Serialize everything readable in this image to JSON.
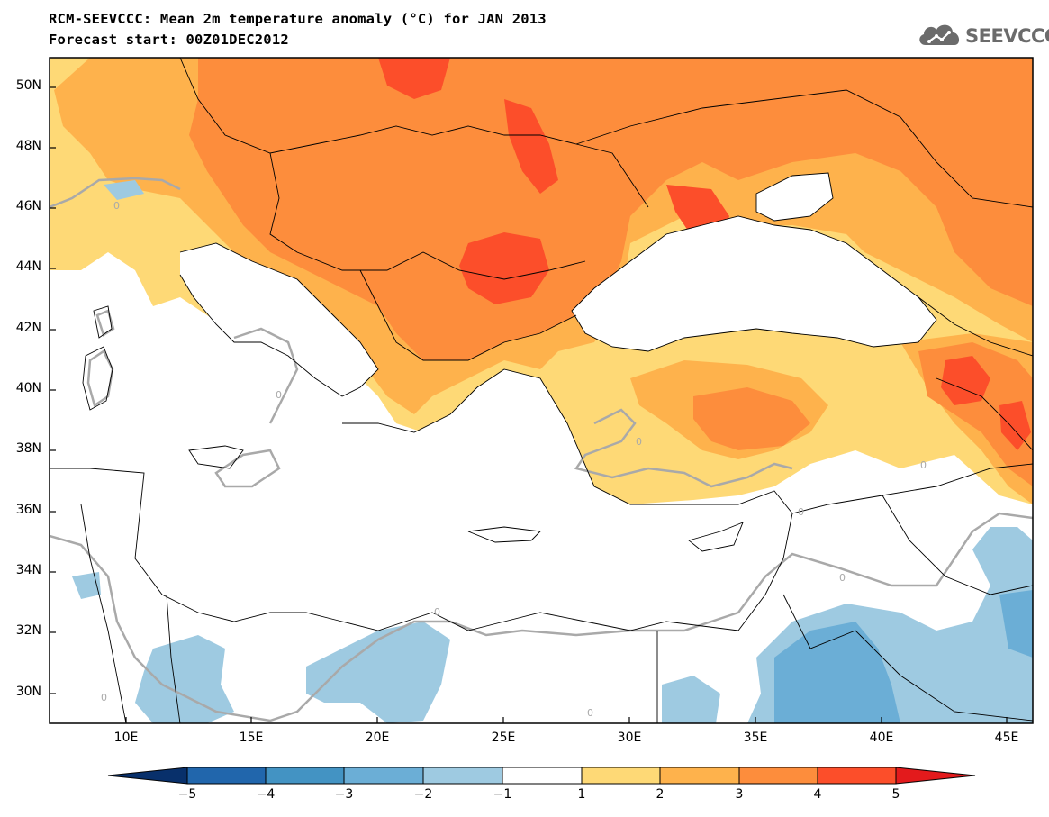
{
  "header": {
    "title": "RCM-SEEVCCC: Mean 2m temperature anomaly (°C) for JAN 2013",
    "subtitle": "Forecast start: 00Z01DEC2012",
    "logo_text": "SEEVCCC",
    "logo_color": "#6b6b6b"
  },
  "axes": {
    "lat_labels": [
      "50N",
      "48N",
      "46N",
      "44N",
      "42N",
      "40N",
      "38N",
      "36N",
      "34N",
      "32N",
      "30N"
    ],
    "lon_labels": [
      "10E",
      "15E",
      "20E",
      "25E",
      "30E",
      "35E",
      "40E",
      "45E"
    ]
  },
  "colorbar": {
    "labels": [
      "−5",
      "−4",
      "−3",
      "−2",
      "−1",
      "1",
      "2",
      "3",
      "4",
      "5"
    ],
    "colors": [
      "#08306b",
      "#2166ac",
      "#4393c3",
      "#6baed6",
      "#9ecae1",
      "#ffffff",
      "#fed976",
      "#feb24c",
      "#fd8d3c",
      "#fc4e2a",
      "#e31a1c"
    ]
  },
  "map_colors": {
    "ocean": "#ffffff",
    "zero_contour": "#a9a9a9",
    "border": "#000000"
  },
  "contour_label": "0"
}
